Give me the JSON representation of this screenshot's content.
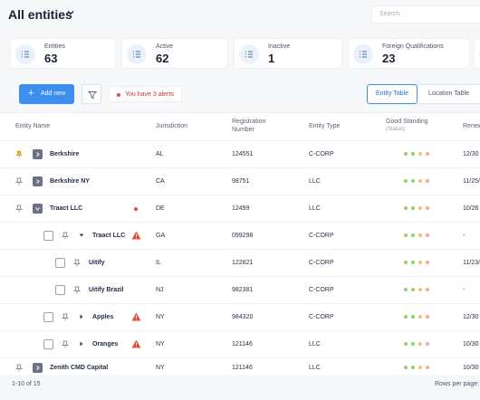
{
  "header": {
    "title": "All entities",
    "search_placeholder": "Search"
  },
  "stats": [
    {
      "label": "Entities",
      "value": "63"
    },
    {
      "label": "Active",
      "value": "62"
    },
    {
      "label": "Inactive",
      "value": "1"
    },
    {
      "label": "Foreign Qualifications",
      "value": "23"
    }
  ],
  "toolbar": {
    "add_label": "Add new",
    "alert_text": "You have 3 alerts",
    "tab_entity": "Entity Table",
    "tab_location": "Location Table"
  },
  "columns": {
    "entity_name": "Entity Name",
    "jurisdiction": "Jurisdiction",
    "registration_1": "Registration",
    "registration_2": "Number",
    "entity_type": "Entity Type",
    "good_standing": "Good Standing",
    "good_standing_sub": "(Status)",
    "renewal": "Renew"
  },
  "rows": [
    {
      "name": "Berkshire",
      "jurisdiction": "AL",
      "registration": "124551",
      "type": "C-CORP",
      "renewal": "12/30"
    },
    {
      "name": "Berkshire NY",
      "jurisdiction": "CA",
      "registration": "98751",
      "type": "LLC",
      "renewal": "11/25/"
    },
    {
      "name": "Traact LLC",
      "jurisdiction": "DE",
      "registration": "12499",
      "type": "LLC",
      "renewal": "10/26"
    },
    {
      "name": "Traact LLC",
      "jurisdiction": "GA",
      "registration": "099298",
      "type": "C-CORP",
      "renewal": "-"
    },
    {
      "name": "Uitify",
      "jurisdiction": "IL",
      "registration": "122821",
      "type": "C-CORP",
      "renewal": "11/23/"
    },
    {
      "name": "Uitify Brazil",
      "jurisdiction": "NJ",
      "registration": "982381",
      "type": "C-CORP",
      "renewal": "-"
    },
    {
      "name": "Apples",
      "jurisdiction": "NY",
      "registration": "984320",
      "type": "C-CORP",
      "renewal": "12/30"
    },
    {
      "name": "Oranges",
      "jurisdiction": "NY",
      "registration": "121146",
      "type": "LLC",
      "renewal": "10/30"
    },
    {
      "name": "Zenith CMD Capital",
      "jurisdiction": "NY",
      "registration": "121146",
      "type": "LLC",
      "renewal": "10/30"
    }
  ],
  "footer": {
    "range": "1-10 of 15",
    "rows_per_page": "Rows per page:"
  },
  "colors": {
    "accent": "#3b8fef",
    "alert": "#e74c3c",
    "good": "#8fd16a",
    "warn": "#f5c26b",
    "bad": "#f4a98a",
    "pin_active": "#f0b429"
  },
  "icons": {
    "pin": "pin-icon",
    "expand": "chevron-right-icon",
    "warning": "warning-icon",
    "filter": "filter-icon",
    "stat": "list-icon"
  }
}
